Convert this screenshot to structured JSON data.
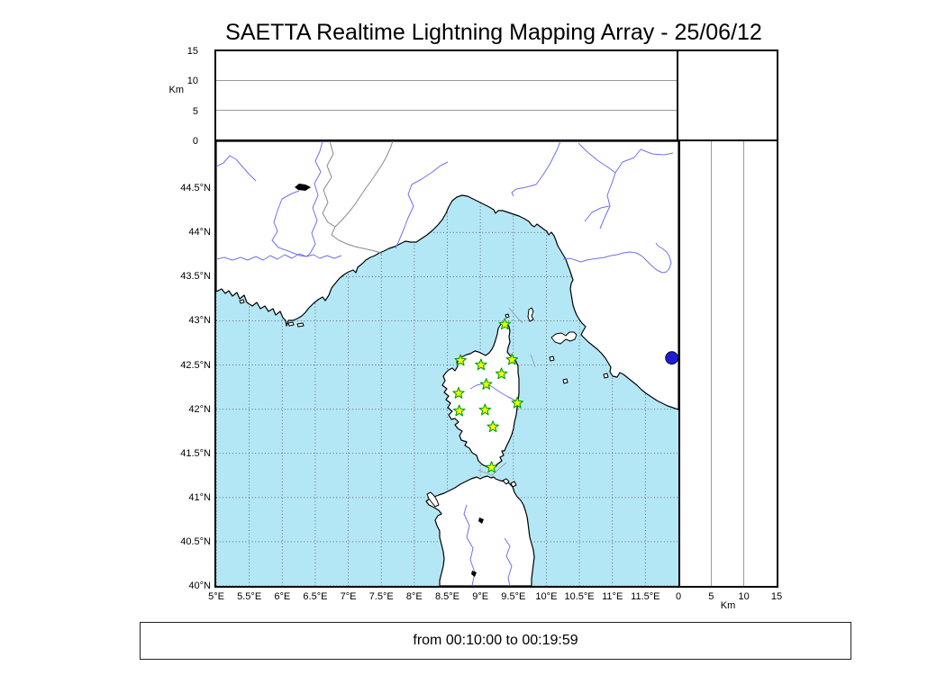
{
  "title": "SAETTA Realtime Lightning Mapping Array - 25/06/12",
  "time_caption": "from 00:10:00 to 00:19:59",
  "altitude_axes": {
    "unit_label": "Km",
    "tick_labels": [
      "0",
      "5",
      "10",
      "15"
    ],
    "tick_values_km": [
      0,
      5,
      10,
      15
    ],
    "max_km": 15,
    "gridlines_km": [
      5,
      10
    ]
  },
  "map": {
    "lon_range_deg_e": [
      5,
      12
    ],
    "lat_range_deg_n": [
      40,
      45.03
    ],
    "grid_step_deg": 0.5,
    "lat_ticks": [
      {
        "label": "44.5°N",
        "value": 44.5
      },
      {
        "label": "44°N",
        "value": 44.0
      },
      {
        "label": "43.5°N",
        "value": 43.5
      },
      {
        "label": "43°N",
        "value": 43.0
      },
      {
        "label": "42.5°N",
        "value": 42.5
      },
      {
        "label": "42°N",
        "value": 42.0
      },
      {
        "label": "41.5°N",
        "value": 41.5
      },
      {
        "label": "41°N",
        "value": 41.0
      },
      {
        "label": "40.5°N",
        "value": 40.5
      },
      {
        "label": "40°N",
        "value": 40.0
      }
    ],
    "lon_ticks": [
      {
        "label": "5°E",
        "value": 5.0
      },
      {
        "label": "5.5°E",
        "value": 5.5
      },
      {
        "label": "6°E",
        "value": 6.0
      },
      {
        "label": "6.5°E",
        "value": 6.5
      },
      {
        "label": "7°E",
        "value": 7.0
      },
      {
        "label": "7.5°E",
        "value": 7.5
      },
      {
        "label": "8°E",
        "value": 8.0
      },
      {
        "label": "8.5°E",
        "value": 8.5
      },
      {
        "label": "9°E",
        "value": 9.0
      },
      {
        "label": "9.5°E",
        "value": 9.5
      },
      {
        "label": "10°E",
        "value": 10.0
      },
      {
        "label": "10.5°E",
        "value": 10.5
      },
      {
        "label": "11°E",
        "value": 11.0
      },
      {
        "label": "11.5°E",
        "value": 11.5
      }
    ],
    "colors": {
      "sea": "#b4e7f6",
      "land": "#ffffff",
      "coastline": "#000000",
      "river": "#7070ee",
      "grid": "#5a5a5a",
      "country_border": "#888888",
      "lake_dark": "#000000",
      "round_lake": "#1c1cd8",
      "station_fill": "#ffff00",
      "station_stroke": "#00a000"
    },
    "stations": {
      "marker": "star",
      "count": 12,
      "points": [
        {
          "lon": 9.37,
          "lat": 42.96
        },
        {
          "lon": 8.7,
          "lat": 42.55
        },
        {
          "lon": 9.01,
          "lat": 42.5
        },
        {
          "lon": 9.48,
          "lat": 42.56
        },
        {
          "lon": 9.32,
          "lat": 42.4
        },
        {
          "lon": 9.09,
          "lat": 42.28
        },
        {
          "lon": 8.67,
          "lat": 42.18
        },
        {
          "lon": 9.56,
          "lat": 42.07
        },
        {
          "lon": 9.07,
          "lat": 41.99
        },
        {
          "lon": 8.68,
          "lat": 41.98
        },
        {
          "lon": 9.19,
          "lat": 41.8
        },
        {
          "lon": 9.17,
          "lat": 41.34
        }
      ]
    },
    "round_lake_point": {
      "lon": 11.9,
      "lat": 42.58
    }
  }
}
